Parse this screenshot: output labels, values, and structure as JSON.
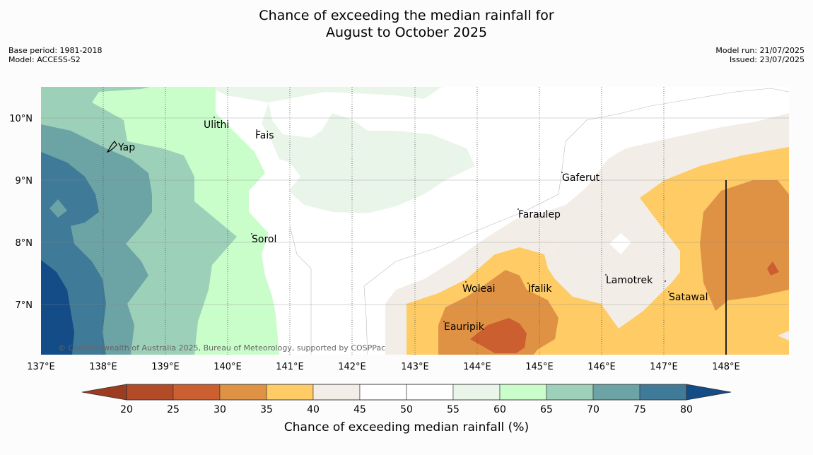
{
  "title": {
    "line1": "Chance of exceeding the median rainfall for",
    "line2": "August to October 2025"
  },
  "meta": {
    "base_period": "Base period: 1981-2018",
    "model": "Model: ACCESS-S2",
    "model_run": "Model run: 21/07/2025",
    "issued": "Issued: 23/07/2025"
  },
  "copyright": "© Commonwealth of Australia 2025, Bureau of Meteorology, supported by COSPPac",
  "axes": {
    "lon_ticks": [
      "137°E",
      "138°E",
      "139°E",
      "140°E",
      "141°E",
      "142°E",
      "143°E",
      "144°E",
      "145°E",
      "146°E",
      "147°E",
      "148°E"
    ],
    "lat_ticks": [
      "10°N",
      "9°N",
      "8°N",
      "7°N"
    ]
  },
  "places": [
    {
      "name": "Yap"
    },
    {
      "name": "Ulithi"
    },
    {
      "name": "Fais"
    },
    {
      "name": "Sorol"
    },
    {
      "name": "Gaferut"
    },
    {
      "name": "Faraulep"
    },
    {
      "name": "Woleai"
    },
    {
      "name": "Ifalik"
    },
    {
      "name": "Lamotrek"
    },
    {
      "name": "Satawal"
    },
    {
      "name": "Eauripik"
    }
  ],
  "colorbar": {
    "label": "Chance of exceeding median rainfall (%)",
    "ticks": [
      "20",
      "25",
      "30",
      "35",
      "40",
      "45",
      "50",
      "55",
      "60",
      "65",
      "70",
      "75",
      "80"
    ],
    "colors": {
      "below20": "#9e3c22",
      "20-25": "#b34a28",
      "25-30": "#cb5f2f",
      "30-35": "#e09244",
      "35-40": "#fecb65",
      "40-45": "#f2ede7",
      "45-50": "#ffffff",
      "50-55": "#ffffff",
      "55-60": "#eaf5ea",
      "60-65": "#c9fdca",
      "65-70": "#9dd0b8",
      "70-75": "#6ca3a5",
      "75-80": "#407a99",
      "above80": "#134c87"
    }
  }
}
